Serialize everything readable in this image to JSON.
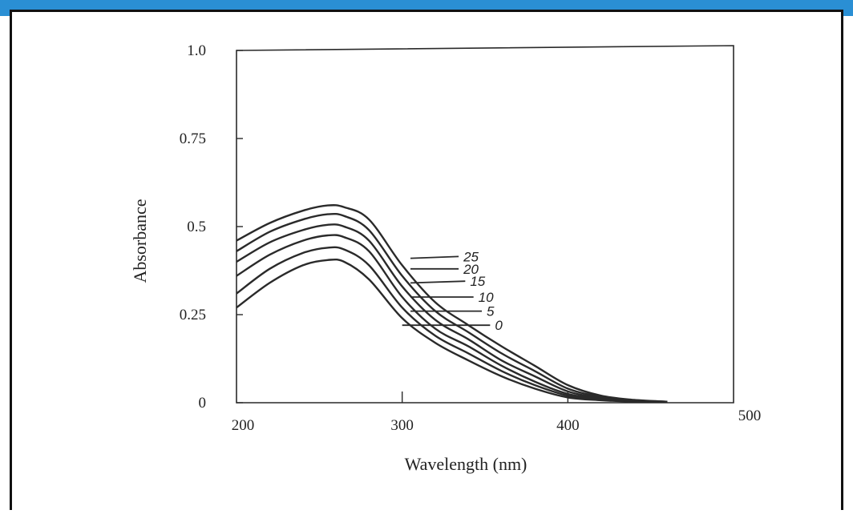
{
  "colors": {
    "background_band": "#2a8fd4",
    "frame": "#111111",
    "ink": "#2a2a2a"
  },
  "chart_data": {
    "type": "line",
    "title": "",
    "xlabel": "Wavelength (nm)",
    "ylabel": "Absorbance",
    "xlim": [
      200,
      500
    ],
    "ylim": [
      0,
      1.0
    ],
    "x_ticks": [
      "200",
      "300",
      "400",
      "500"
    ],
    "y_ticks": [
      "0",
      "0.25",
      "0.5",
      "0.75",
      "1.0"
    ],
    "y_tick_values": [
      0,
      0.25,
      0.5,
      0.75,
      1.0
    ],
    "x_tick_values": [
      200,
      300,
      400,
      500
    ],
    "grid": false,
    "legend": "curve labels at right of curves",
    "series": [
      {
        "label": "0",
        "x": [
          200,
          220,
          240,
          255,
          265,
          280,
          300,
          320,
          340,
          360,
          380,
          400,
          420,
          440,
          460
        ],
        "y": [
          0.27,
          0.34,
          0.39,
          0.405,
          0.4,
          0.35,
          0.24,
          0.17,
          0.12,
          0.075,
          0.04,
          0.015,
          0.007,
          0.003,
          0.002
        ]
      },
      {
        "label": "5",
        "x": [
          200,
          220,
          240,
          255,
          265,
          280,
          300,
          320,
          340,
          360,
          380,
          400,
          420,
          440,
          460
        ],
        "y": [
          0.31,
          0.38,
          0.425,
          0.44,
          0.435,
          0.39,
          0.27,
          0.19,
          0.14,
          0.09,
          0.05,
          0.02,
          0.009,
          0.004,
          0.002
        ]
      },
      {
        "label": "10",
        "x": [
          200,
          220,
          240,
          255,
          265,
          280,
          300,
          320,
          340,
          360,
          380,
          400,
          420,
          440,
          460
        ],
        "y": [
          0.36,
          0.42,
          0.46,
          0.475,
          0.47,
          0.43,
          0.3,
          0.21,
          0.16,
          0.105,
          0.06,
          0.025,
          0.011,
          0.005,
          0.002
        ]
      },
      {
        "label": "15",
        "x": [
          200,
          220,
          240,
          255,
          265,
          280,
          300,
          320,
          340,
          360,
          380,
          400,
          420,
          440,
          460
        ],
        "y": [
          0.4,
          0.455,
          0.49,
          0.505,
          0.5,
          0.46,
          0.33,
          0.235,
          0.18,
          0.12,
          0.075,
          0.032,
          0.014,
          0.006,
          0.003
        ]
      },
      {
        "label": "20",
        "x": [
          200,
          220,
          240,
          255,
          265,
          280,
          300,
          320,
          340,
          360,
          380,
          400,
          420,
          440,
          460
        ],
        "y": [
          0.43,
          0.485,
          0.52,
          0.535,
          0.53,
          0.49,
          0.36,
          0.26,
          0.2,
          0.14,
          0.09,
          0.04,
          0.017,
          0.007,
          0.003
        ]
      },
      {
        "label": "25",
        "x": [
          200,
          220,
          240,
          255,
          265,
          280,
          300,
          320,
          340,
          360,
          380,
          400,
          420,
          440,
          460
        ],
        "y": [
          0.46,
          0.51,
          0.545,
          0.56,
          0.555,
          0.52,
          0.39,
          0.285,
          0.22,
          0.16,
          0.105,
          0.05,
          0.02,
          0.008,
          0.003
        ]
      }
    ],
    "annotations": [
      {
        "text": "25",
        "leader_from": [
          305,
          0.41
        ],
        "label_at": [
          336,
          0.415
        ]
      },
      {
        "text": "20",
        "leader_from": [
          305,
          0.38
        ],
        "label_at": [
          336,
          0.38
        ]
      },
      {
        "text": "15",
        "leader_from": [
          305,
          0.34
        ],
        "label_at": [
          340,
          0.345
        ]
      },
      {
        "text": "10",
        "leader_from": [
          305,
          0.3
        ],
        "label_at": [
          345,
          0.3
        ]
      },
      {
        "text": "5",
        "leader_from": [
          305,
          0.26
        ],
        "label_at": [
          350,
          0.26
        ]
      },
      {
        "text": "0",
        "leader_from": [
          300,
          0.22
        ],
        "label_at": [
          355,
          0.22
        ]
      }
    ]
  }
}
